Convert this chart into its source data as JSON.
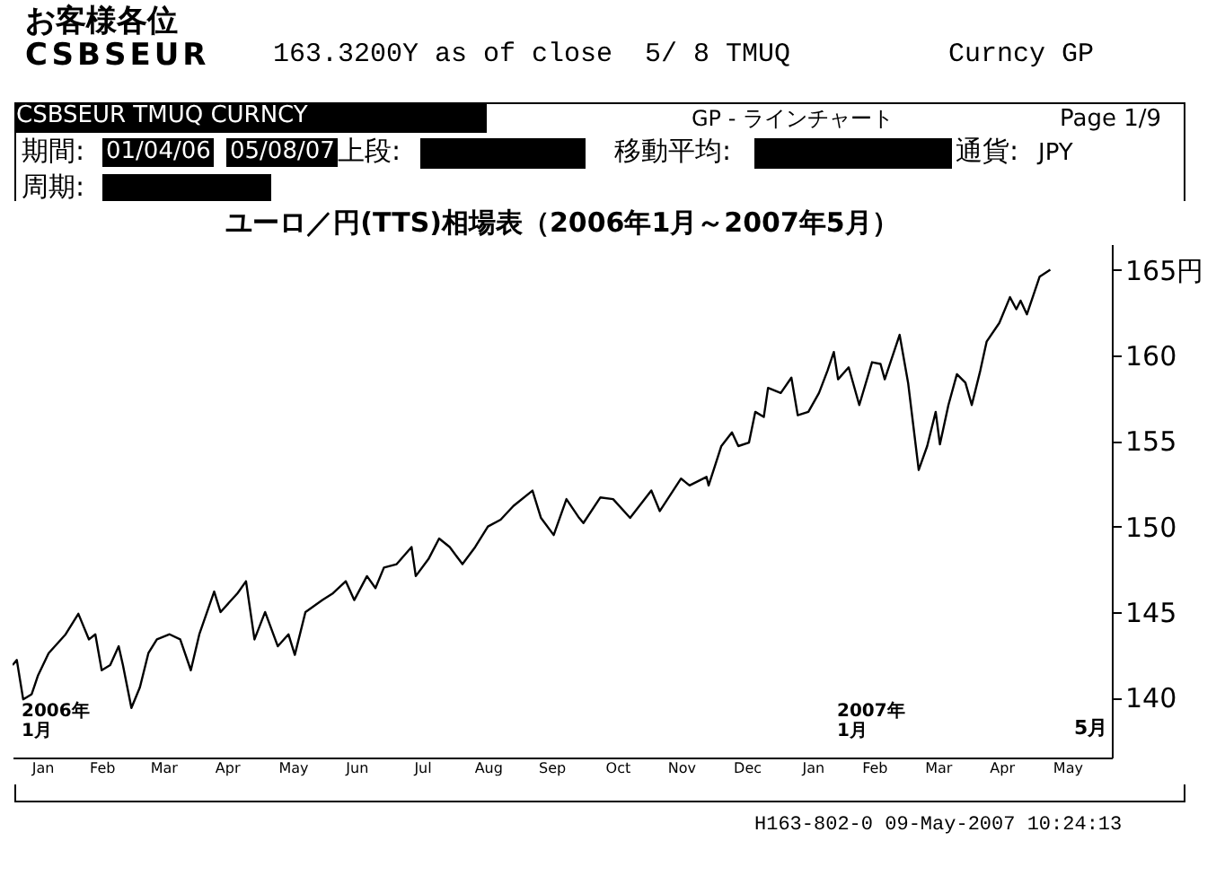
{
  "chart_data": {
    "type": "line",
    "title": "ユーロ／円(TTS)相場表（2006年1月～2007年5月）",
    "annotations": [
      "お客様各位",
      "CSBSEUR",
      "163.3200Y as of close  5/ 8 TMUQ",
      "Curncy GP",
      "CSBSEUR TMUQ CURNCY",
      "GP - ラインチャート",
      "Page 1/9",
      "期間:",
      "01/04/06",
      "05/08/07",
      "上段:",
      "移動平均:",
      "通貨:",
      "JPY",
      "周期:",
      "2006年\n1月",
      "2007年\n1月",
      "5月",
      "H163-802-0 09-May-2007 10:24:13"
    ],
    "x": [
      "2006-01-04",
      "2006-01-06",
      "2006-01-09",
      "2006-01-13",
      "2006-01-16",
      "2006-01-21",
      "2006-01-29",
      "2006-02-04",
      "2006-02-09",
      "2006-02-12",
      "2006-02-15",
      "2006-02-19",
      "2006-02-23",
      "2006-02-25",
      "2006-03-01",
      "2006-03-05",
      "2006-03-09",
      "2006-03-13",
      "2006-03-19",
      "2006-03-24",
      "2006-03-29",
      "2006-04-02",
      "2006-04-09",
      "2006-04-12",
      "2006-04-20",
      "2006-04-24",
      "2006-04-28",
      "2006-05-03",
      "2006-05-09",
      "2006-05-14",
      "2006-05-17",
      "2006-05-22",
      "2006-05-30",
      "2006-06-04",
      "2006-06-10",
      "2006-06-14",
      "2006-06-20",
      "2006-06-24",
      "2006-06-28",
      "2006-07-04",
      "2006-07-11",
      "2006-07-13",
      "2006-07-19",
      "2006-07-24",
      "2006-07-29",
      "2006-08-04",
      "2006-08-10",
      "2006-08-16",
      "2006-08-22",
      "2006-08-28",
      "2006-09-06",
      "2006-09-10",
      "2006-09-16",
      "2006-09-22",
      "2006-09-28",
      "2006-09-30",
      "2006-10-08",
      "2006-10-14",
      "2006-10-22",
      "2006-11-01",
      "2006-11-05",
      "2006-11-15",
      "2006-11-19",
      "2006-11-27",
      "2006-11-28",
      "2006-12-04",
      "2006-12-09",
      "2006-12-12",
      "2006-12-17",
      "2006-12-20",
      "2006-12-24",
      "2006-12-26",
      "2007-01-01",
      "2007-01-06",
      "2007-01-09",
      "2007-01-14",
      "2007-01-19",
      "2007-01-23",
      "2007-01-26",
      "2007-01-28",
      "2007-02-02",
      "2007-02-07",
      "2007-02-13",
      "2007-02-17",
      "2007-02-19",
      "2007-02-26",
      "2007-03-02",
      "2007-03-07",
      "2007-03-11",
      "2007-03-15",
      "2007-03-17",
      "2007-03-21",
      "2007-03-25",
      "2007-03-29",
      "2007-04-01",
      "2007-04-05",
      "2007-04-08",
      "2007-04-14",
      "2007-04-19",
      "2007-04-22",
      "2007-04-24",
      "2007-04-27",
      "2007-05-03",
      "2007-05-08"
    ],
    "series": [
      {
        "color": "#000000",
        "values": [
          141.9,
          142.2,
          139.9,
          140.2,
          141.3,
          142.6,
          143.7,
          144.9,
          143.4,
          143.7,
          141.6,
          141.9,
          143.0,
          141.9,
          139.4,
          140.6,
          142.6,
          143.4,
          143.7,
          143.4,
          141.6,
          143.7,
          146.2,
          145.0,
          146.1,
          146.8,
          143.4,
          145.0,
          143.0,
          143.7,
          142.5,
          145.0,
          145.7,
          146.1,
          146.8,
          145.7,
          147.1,
          146.4,
          147.6,
          147.8,
          148.8,
          147.1,
          148.1,
          149.3,
          148.8,
          147.8,
          148.8,
          150.0,
          150.4,
          151.2,
          152.1,
          150.5,
          149.5,
          151.6,
          150.5,
          150.2,
          151.7,
          151.6,
          150.5,
          152.1,
          150.9,
          152.8,
          152.4,
          152.9,
          152.4,
          154.7,
          155.5,
          154.7,
          154.9,
          156.7,
          156.4,
          158.1,
          157.8,
          158.7,
          156.5,
          156.7,
          157.8,
          159.1,
          160.2,
          158.6,
          159.3,
          157.1,
          159.6,
          159.5,
          158.6,
          161.2,
          158.4,
          153.3,
          154.7,
          156.7,
          154.8,
          157.1,
          158.9,
          158.4,
          157.1,
          159.1,
          160.8,
          161.9,
          163.4,
          162.7,
          163.2,
          162.4,
          164.6,
          165.0
        ]
      }
    ],
    "xlim": [
      "2006-01-04",
      "2007-06-06"
    ],
    "xticks": [
      {
        "value": "2006-01-18",
        "label": "Jan"
      },
      {
        "value": "2006-02-15",
        "label": "Feb"
      },
      {
        "value": "2006-03-16",
        "label": "Mar"
      },
      {
        "value": "2006-04-15",
        "label": "Apr"
      },
      {
        "value": "2006-05-16",
        "label": "May"
      },
      {
        "value": "2006-06-15",
        "label": "Jun"
      },
      {
        "value": "2006-07-16",
        "label": "Jul"
      },
      {
        "value": "2006-08-16",
        "label": "Aug"
      },
      {
        "value": "2006-09-15",
        "label": "Sep"
      },
      {
        "value": "2006-10-16",
        "label": "Oct"
      },
      {
        "value": "2006-11-15",
        "label": "Nov"
      },
      {
        "value": "2006-12-16",
        "label": "Dec"
      },
      {
        "value": "2007-01-16",
        "label": "Jan"
      },
      {
        "value": "2007-02-14",
        "label": "Feb"
      },
      {
        "value": "2007-03-16",
        "label": "Mar"
      },
      {
        "value": "2007-04-15",
        "label": "Apr"
      },
      {
        "value": "2007-05-16",
        "label": "May"
      }
    ],
    "ylim": [
      136.5,
      166.5
    ],
    "yticks": [
      140,
      145,
      150,
      155,
      160,
      {
        "value": 165,
        "label": "165円"
      }
    ]
  }
}
